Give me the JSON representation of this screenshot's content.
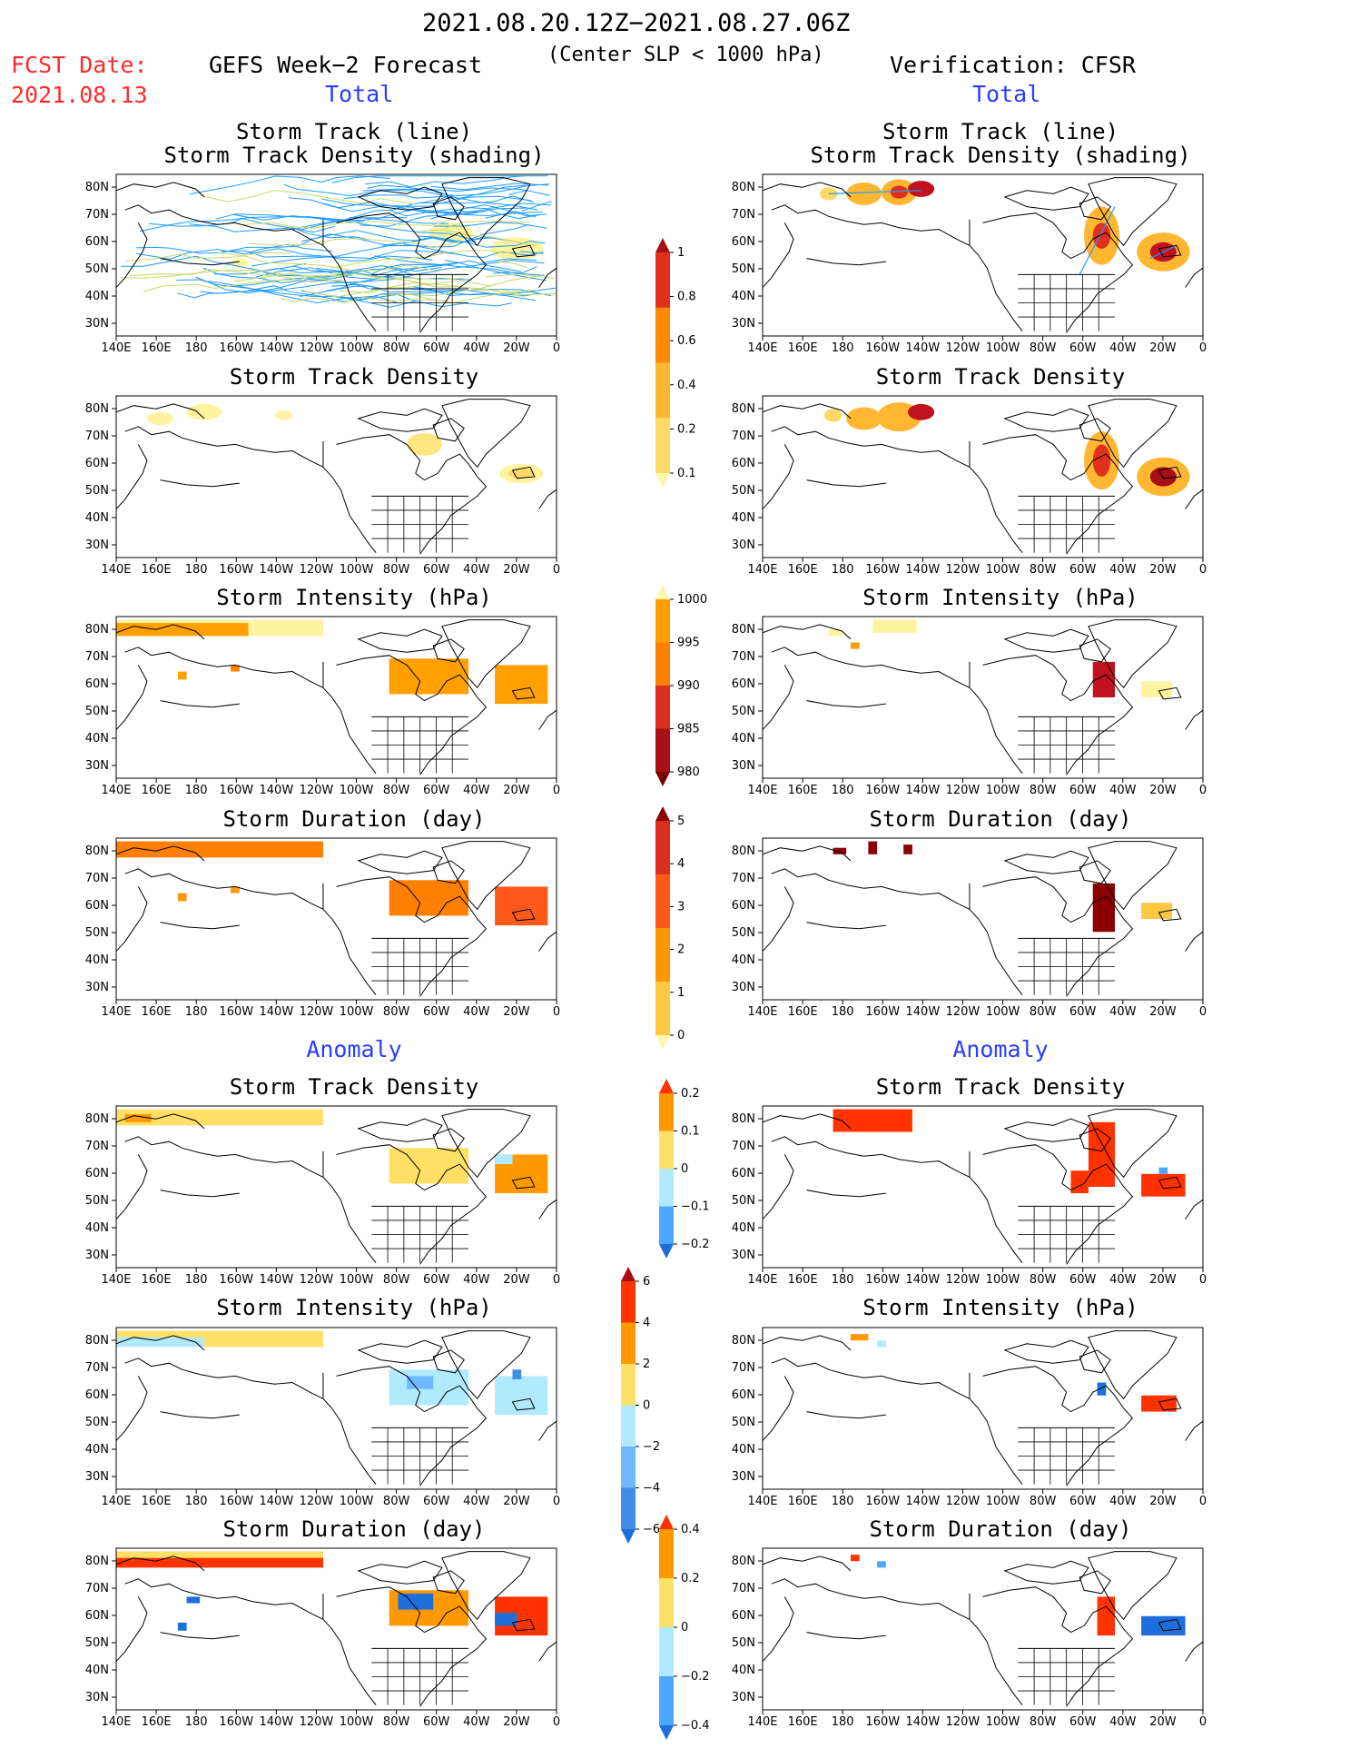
{
  "header": {
    "period": "2021.08.20.12Z−2021.08.27.06Z",
    "fcst_label": "FCST Date:",
    "fcst_date": "2021.08.13",
    "forecast_title": "GEFS Week−2 Forecast",
    "condition": "(Center SLP < 1000 hPa)",
    "verification": "Verification: CFSR",
    "total_left": "Total",
    "total_right": "Total",
    "anomaly_left": "Anomaly",
    "anomaly_right": "Anomaly"
  },
  "rows": [
    {
      "title_line1": "Storm Track (line)",
      "title_line2": "Storm Track Density (shading)"
    },
    {
      "title_line1": "Storm Track Density",
      "title_line2": ""
    },
    {
      "title_line1": "Storm Intensity (hPa)",
      "title_line2": ""
    },
    {
      "title_line1": "Storm Duration (day)",
      "title_line2": ""
    },
    {
      "title_line1": "Storm Track Density",
      "title_line2": ""
    },
    {
      "title_line1": "Storm Intensity (hPa)",
      "title_line2": ""
    },
    {
      "title_line1": "Storm Duration (day)",
      "title_line2": ""
    }
  ],
  "axes": {
    "lat_labels": [
      "80N",
      "70N",
      "60N",
      "50N",
      "40N",
      "30N"
    ],
    "lon_labels": [
      "140E",
      "160E",
      "180",
      "160W",
      "140W",
      "120W",
      "100W",
      "80W",
      "60W",
      "40W",
      "20W",
      "0"
    ],
    "lon_labels_right": [
      "140E",
      "160E",
      "180",
      "160W",
      "140W",
      "120W",
      "100W",
      "80W",
      "60W",
      "40W",
      "20W",
      "0"
    ]
  },
  "colorbars": [
    {
      "name": "track-density",
      "labels": [
        "1",
        "0.8",
        "0.6",
        "0.4",
        "0.2",
        "0.1"
      ],
      "colors": [
        "#a50f15",
        "#e0301e",
        "#ff8c00",
        "#ffb732",
        "#ffd966",
        "#fff7b0"
      ]
    },
    {
      "name": "intensity",
      "labels": [
        "1000",
        "995",
        "990",
        "985",
        "980"
      ],
      "colors": [
        "#fff7b0",
        "#ff9f00",
        "#ff7f00",
        "#d7301f",
        "#a50f15",
        "#7a0000"
      ]
    },
    {
      "name": "duration",
      "labels": [
        "5",
        "4",
        "3",
        "2",
        "1",
        "0"
      ],
      "colors": [
        "#8b0000",
        "#d7301f",
        "#ff5a1a",
        "#ff9900",
        "#ffc844",
        "#fff7b0"
      ]
    },
    {
      "name": "density-anomaly",
      "labels": [
        "0.2",
        "0.1",
        "0",
        "−0.1",
        "−0.2"
      ],
      "colors": [
        "#ff3300",
        "#ff9900",
        "#ffe066",
        "#b0eaff",
        "#4da6ff",
        "#1f6fdb"
      ]
    },
    {
      "name": "intensity-anomaly",
      "labels": [
        "6",
        "4",
        "2",
        "0",
        "−2",
        "−4",
        "−6"
      ],
      "colors": [
        "#a50f15",
        "#ff3300",
        "#ff9900",
        "#ffe066",
        "#b0eaff",
        "#6fb8ff",
        "#3e8ee8",
        "#1f6fdb"
      ]
    },
    {
      "name": "duration-anomaly",
      "labels": [
        "0.4",
        "0.2",
        "0",
        "−0.2",
        "−0.4"
      ],
      "colors": [
        "#ff3300",
        "#ff9900",
        "#ffe066",
        "#b0eaff",
        "#4da6ff",
        "#1f6fdb"
      ]
    }
  ]
}
